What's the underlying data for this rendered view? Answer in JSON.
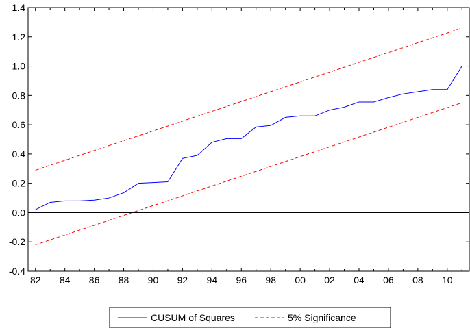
{
  "chart_data": {
    "type": "line",
    "x_tick_labels": [
      "82",
      "84",
      "86",
      "88",
      "90",
      "92",
      "94",
      "96",
      "98",
      "00",
      "02",
      "04",
      "06",
      "08",
      "10"
    ],
    "y_ticks": [
      -0.4,
      -0.2,
      0.0,
      0.2,
      0.4,
      0.6,
      0.8,
      1.0,
      1.2,
      1.4
    ],
    "y_tick_labels": [
      "-0.4",
      "-0.2",
      "0.0",
      "0.2",
      "0.4",
      "0.6",
      "0.8",
      "1.0",
      "1.2",
      "1.4"
    ],
    "xlim": [
      1981.5,
      2011.5
    ],
    "ylim": [
      -0.4,
      1.4
    ],
    "grid": false,
    "zero_line": true,
    "legend_position": "bottom-center",
    "series": [
      {
        "name": "CUSUM of Squares",
        "color": "#0000ff",
        "style": "solid",
        "x": [
          1982,
          1983,
          1984,
          1985,
          1986,
          1987,
          1988,
          1989,
          1990,
          1991,
          1992,
          1993,
          1994,
          1995,
          1996,
          1997,
          1998,
          1999,
          2000,
          2001,
          2002,
          2003,
          2004,
          2005,
          2006,
          2007,
          2008,
          2009,
          2010,
          2011
        ],
        "values": [
          0.02,
          0.07,
          0.08,
          0.08,
          0.085,
          0.1,
          0.135,
          0.2,
          0.205,
          0.21,
          0.37,
          0.39,
          0.48,
          0.505,
          0.505,
          0.585,
          0.595,
          0.65,
          0.66,
          0.66,
          0.7,
          0.72,
          0.755,
          0.755,
          0.785,
          0.81,
          0.825,
          0.84,
          0.84,
          1.0
        ]
      },
      {
        "name": "5% Significance",
        "color": "#ff0000",
        "style": "dashed",
        "x": [
          1982,
          2011
        ],
        "values": [
          0.29,
          1.26
        ]
      },
      {
        "name": "5% Significance",
        "color": "#ff0000",
        "style": "dashed",
        "x": [
          1982,
          2011
        ],
        "values": [
          -0.22,
          0.75
        ],
        "in_legend": false
      }
    ]
  }
}
